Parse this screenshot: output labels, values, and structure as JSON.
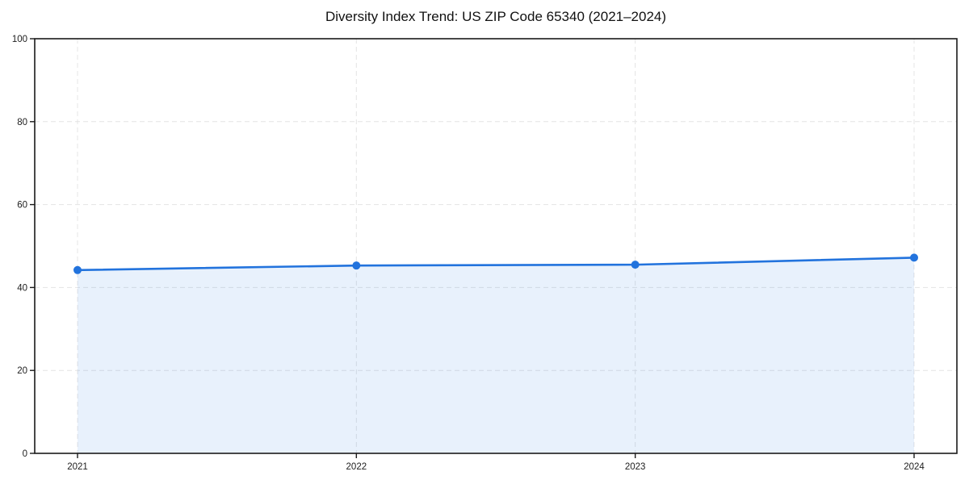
{
  "page": {
    "background": "#ffffff"
  },
  "chart_data": {
    "type": "area",
    "title": "Diversity Index Trend: US ZIP Code 65340 (2021–2024)",
    "categories": [
      "2021",
      "2022",
      "2023",
      "2024"
    ],
    "series": [
      {
        "name": "Diversity Index",
        "values": [
          44.2,
          45.3,
          45.5,
          47.2
        ]
      }
    ],
    "xlabel": "",
    "ylabel": "",
    "ylim": [
      0,
      100
    ],
    "yticks": [
      0,
      20,
      40,
      60,
      80,
      100
    ],
    "grid": true,
    "grid_line_style": "dashed",
    "legend_position": "none",
    "line_color": "#2273dd",
    "fill_color": "rgba(34,115,221,0.10)",
    "marker_style": "circle",
    "axis_color": "#1a1a1a",
    "grid_color": "#e4e4e4",
    "tick_label_color": "#202020",
    "title_color": "#111111"
  }
}
